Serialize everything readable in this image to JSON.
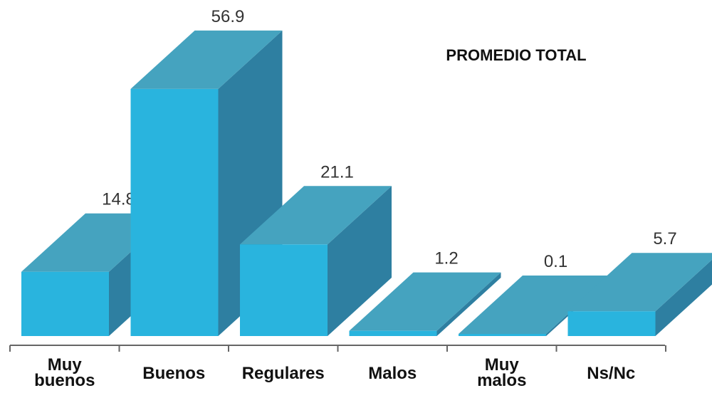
{
  "chart_data": {
    "type": "bar",
    "title": "PROMEDIO TOTAL",
    "categories": [
      [
        "Muy",
        "buenos"
      ],
      [
        "Buenos"
      ],
      [
        "Regulares"
      ],
      [
        "Malos"
      ],
      [
        "Muy",
        "malos"
      ],
      [
        "Ns/Nc"
      ]
    ],
    "values": [
      14.8,
      56.9,
      21.1,
      1.2,
      0.1,
      5.7
    ],
    "value_labels": [
      "14.8",
      "56.9",
      "21.1",
      "1.2",
      "0.1",
      "5.7"
    ],
    "xlabel": "",
    "ylabel": "",
    "grid": false,
    "style": "3d"
  },
  "colors": {
    "front": "#29b4de",
    "top": "#45a3bf",
    "side": "#2e7fa1",
    "axis": "#666666"
  }
}
